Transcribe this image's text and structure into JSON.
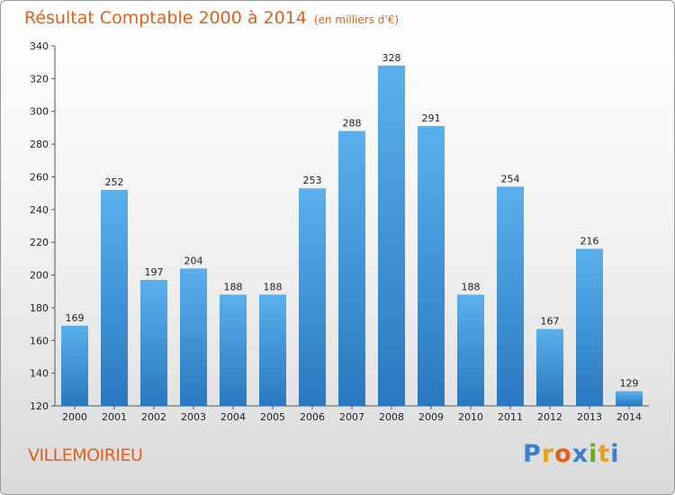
{
  "chart_data": {
    "type": "bar",
    "title": "Résultat Comptable 2000 à 2014",
    "subtitle": "(en milliers d'€)",
    "xlabel": "",
    "ylabel": "",
    "categories": [
      "2000",
      "2001",
      "2002",
      "2003",
      "2004",
      "2005",
      "2006",
      "2007",
      "2008",
      "2009",
      "2010",
      "2011",
      "2012",
      "2013",
      "2014"
    ],
    "values": [
      169,
      252,
      197,
      204,
      188,
      188,
      253,
      288,
      328,
      291,
      188,
      254,
      167,
      216,
      129
    ],
    "ylim": [
      120,
      340
    ],
    "yticks": [
      120,
      140,
      160,
      180,
      200,
      220,
      240,
      260,
      280,
      300,
      320,
      340
    ],
    "grid": false,
    "bar_color": "#3d8fd6"
  },
  "footer": {
    "location": "VILLEMOIRIEU",
    "logo_letters": [
      "P",
      "r",
      "o",
      "x",
      "i",
      "t",
      "i"
    ],
    "logo_colors": [
      "#3a7fd0",
      "#e8a21a",
      "#e0601c",
      "#3a7fd0",
      "#6aaa2a",
      "#e8a21a",
      "#3a7fd0"
    ]
  }
}
